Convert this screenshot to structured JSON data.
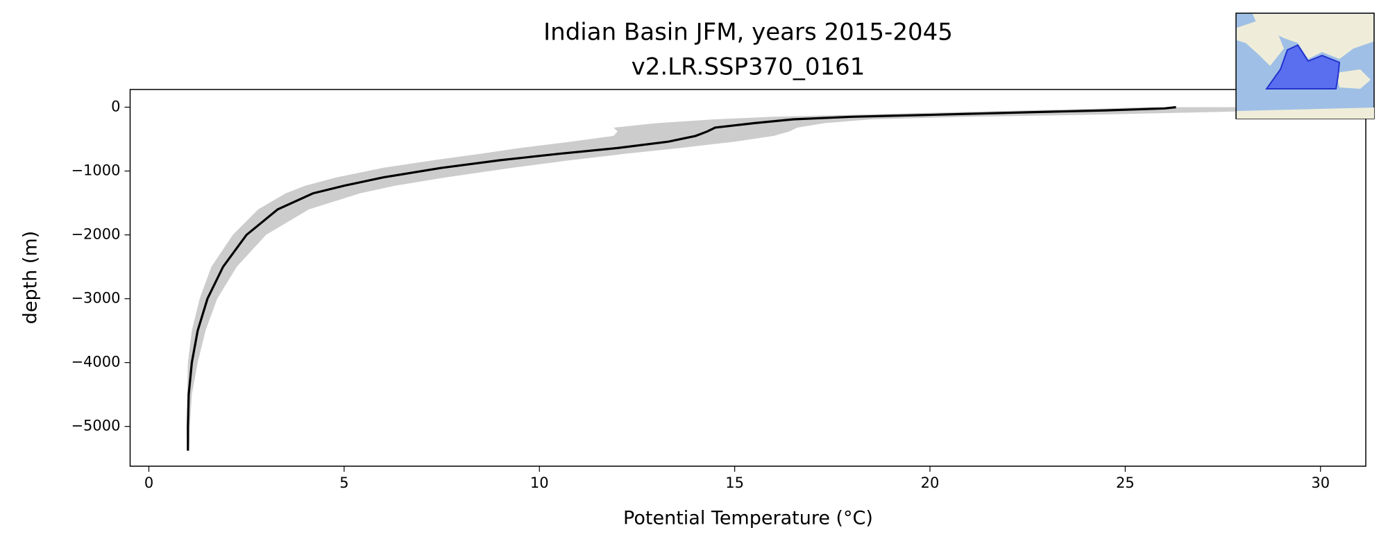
{
  "chart_data": {
    "type": "profile",
    "title": "Indian Basin JFM, years 2015-2045",
    "subtitle": "v2.LR.SSP370_0161",
    "x_label": "Potential Temperature (°C)",
    "y_label": "depth (m)",
    "xlim": [
      -0.48,
      31.16
    ],
    "ylim": [
      -5623,
      277
    ],
    "xticks": [
      0,
      5,
      10,
      15,
      20,
      25,
      30
    ],
    "yticks": [
      0,
      {
        "value": -1000,
        "label": "−1000"
      },
      {
        "value": -2000,
        "label": "−2000"
      },
      {
        "value": -3000,
        "label": "−3000"
      },
      {
        "value": -4000,
        "label": "−4000"
      },
      {
        "value": -5000,
        "label": "−5000"
      }
    ],
    "depth": [
      -5380,
      -5000,
      -4500,
      -4000,
      -3500,
      -3000,
      -2500,
      -2000,
      -1600,
      -1350,
      -1230,
      -1100,
      -950,
      -830,
      -730,
      -640,
      -540,
      -450,
      -380,
      -320,
      -250,
      -190,
      -150,
      -120,
      -80,
      -50,
      -20,
      0
    ],
    "series": [
      {
        "color": "#000000",
        "values": [
          1.0,
          1.0,
          1.02,
          1.1,
          1.25,
          1.5,
          1.9,
          2.5,
          3.3,
          4.2,
          5.0,
          6.0,
          7.5,
          9.0,
          10.5,
          12.0,
          13.3,
          14.0,
          14.3,
          14.5,
          15.5,
          16.5,
          18,
          20,
          22.5,
          24.5,
          26,
          26.3
        ]
      }
    ],
    "band": {
      "color": "#cccccc",
      "lower": [
        0.98,
        0.97,
        0.98,
        1.0,
        1.1,
        1.3,
        1.6,
        2.15,
        2.8,
        3.5,
        4.0,
        4.8,
        6.0,
        7.3,
        8.5,
        9.5,
        10.8,
        11.9,
        12.0,
        11.9,
        13.0,
        14.5,
        16,
        18,
        20.5,
        22.5,
        24.5,
        25.5
      ],
      "upper": [
        1.03,
        1.05,
        1.1,
        1.25,
        1.45,
        1.75,
        2.25,
        3.0,
        4.1,
        5.4,
        6.3,
        7.6,
        9.3,
        10.8,
        12.2,
        13.6,
        15.0,
        16.0,
        16.4,
        16.6,
        17.3,
        18.5,
        21,
        24,
        27,
        29,
        30.5,
        31.0
      ]
    }
  }
}
